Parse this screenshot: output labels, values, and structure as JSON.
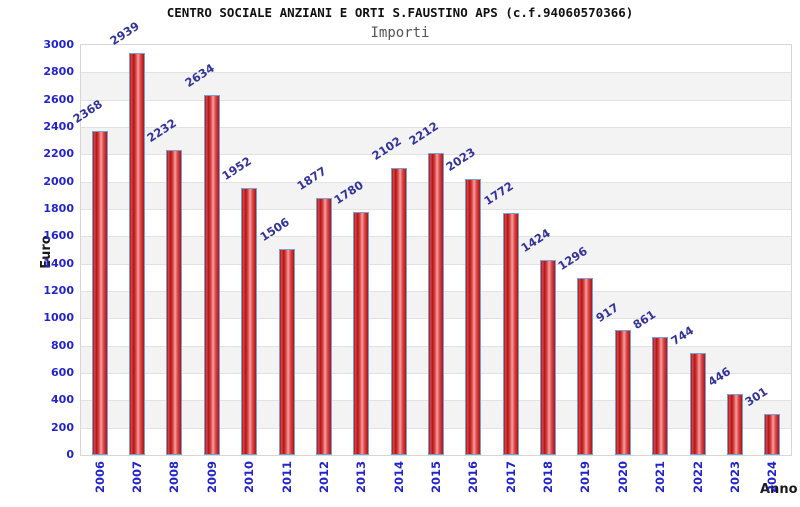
{
  "chart_data": {
    "type": "bar",
    "title": "CENTRO SOCIALE ANZIANI E ORTI S.FAUSTINO APS (c.f.94060570366)",
    "subtitle": "Importi",
    "xlabel": "Anno",
    "ylabel": "Euro",
    "categories": [
      "2006",
      "2007",
      "2008",
      "2009",
      "2010",
      "2011",
      "2012",
      "2013",
      "2014",
      "2015",
      "2016",
      "2017",
      "2018",
      "2019",
      "2020",
      "2021",
      "2022",
      "2023",
      "2024"
    ],
    "values": [
      2368,
      2939,
      2232,
      2634,
      1952,
      1506,
      1877,
      1780,
      2102,
      2212,
      2023,
      1772,
      1424,
      1296,
      917,
      861,
      744,
      446,
      301
    ],
    "ylim": [
      0,
      3000
    ],
    "ytick_step": 200,
    "grid": true,
    "legend": "none",
    "band_pattern": "alternating horizontal white/gray stripes per 200",
    "colors": {
      "bar_edge": "#73a3d6",
      "bar_dark": "#b01414",
      "bar_mid": "#d94545",
      "bar_light": "#f5a0a0",
      "tick_label": "#2323cc",
      "value_label": "#333399",
      "band_fill": "#f3f3f3",
      "grid_line": "#e2e2e2",
      "plot_border": "#d6d6d6",
      "title": "#111111",
      "subtitle": "#555555",
      "axis_title": "#1a1a1a",
      "background": "#ffffff"
    }
  }
}
